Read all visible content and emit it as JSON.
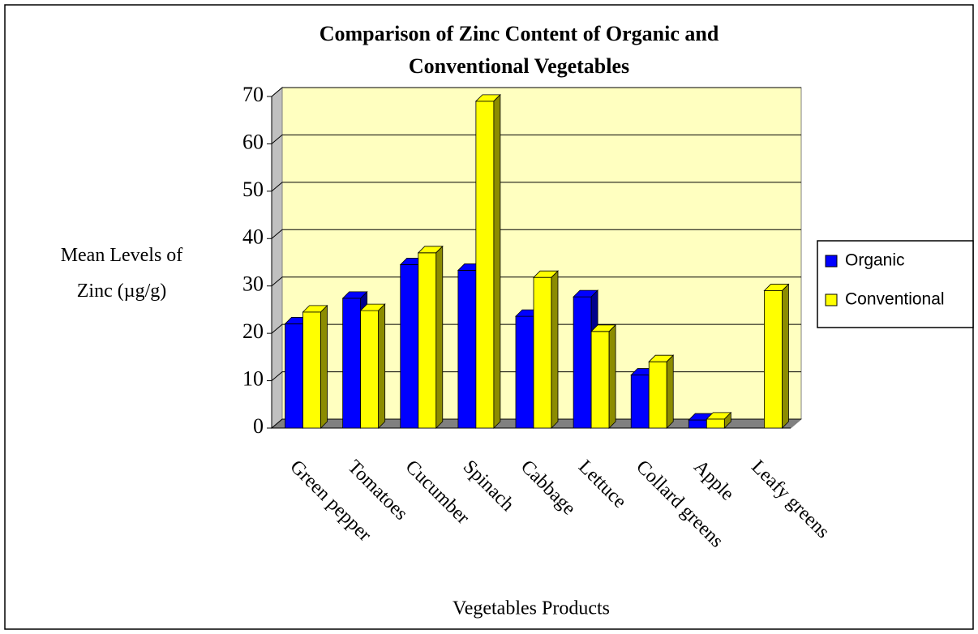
{
  "chart_data": {
    "type": "bar3d",
    "title": "Comparison of Zinc Content of Organic and Conventional Vegetables",
    "x_label": "Vegetables Products",
    "y_label": "Mean Levels of Zinc (µg/g)",
    "categories": [
      "Green pepper",
      "Tomatoes",
      "Cucumber",
      "Spinach",
      "Cabbage",
      "Lettuce",
      "Collard greens",
      "Apple",
      "Leafy greens"
    ],
    "series": [
      {
        "name": "Organic",
        "color": "#0000ff",
        "values": [
          22,
          27.4,
          34.5,
          33.3,
          23.6,
          27.7,
          11.2,
          1.7,
          null
        ]
      },
      {
        "name": "Conventional",
        "color": "#ffff00",
        "values": [
          24.5,
          24.8,
          37,
          69,
          31.8,
          20.4,
          14,
          1.9,
          29
        ]
      }
    ],
    "ylim": [
      0,
      70
    ],
    "yticks": [
      0,
      10,
      20,
      30,
      40,
      50,
      60,
      70
    ],
    "grid": true,
    "legend": "right"
  }
}
